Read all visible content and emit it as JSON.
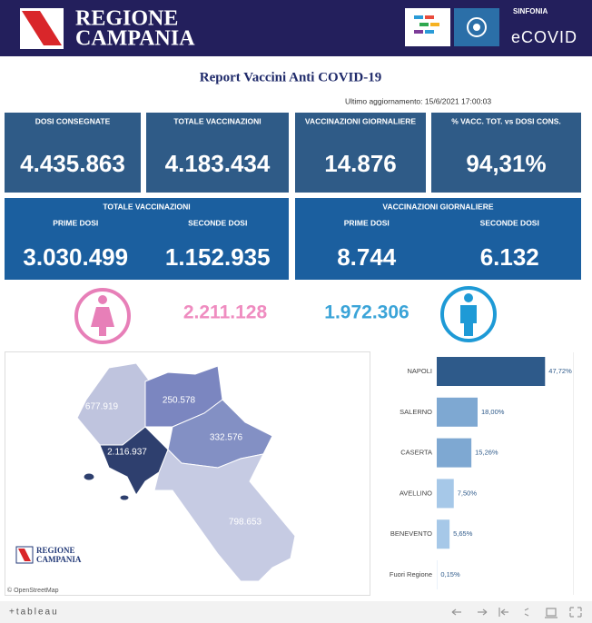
{
  "header": {
    "brand_line1": "REGIONE",
    "brand_line2": "CAMPANIA",
    "product_top": "SINFONIA",
    "product_name": "eCOVID"
  },
  "report": {
    "title": "Report Vaccini Anti COVID-19",
    "updated": "Ultimo aggiornamento: 15/6/2021 17:00:03"
  },
  "kpis": [
    {
      "label": "DOSI CONSEGNATE",
      "value": "4.435.863"
    },
    {
      "label": "TOTALE VACCINAZIONI",
      "value": "4.183.434"
    },
    {
      "label": "VACCINAZIONI GIORNALIERE",
      "value": "14.876"
    },
    {
      "label": "% VACC. TOT. vs DOSI CONS.",
      "value": "94,31%"
    }
  ],
  "dose_panels": [
    {
      "title": "TOTALE VACCINAZIONI",
      "items": [
        {
          "label": "PRIME DOSI",
          "value": "3.030.499"
        },
        {
          "label": "SECONDE DOSI",
          "value": "1.152.935"
        }
      ]
    },
    {
      "title": "VACCINAZIONI GIORNALIERE",
      "items": [
        {
          "label": "PRIME DOSI",
          "value": "8.744"
        },
        {
          "label": "SECONDE DOSI",
          "value": "6.132"
        }
      ]
    }
  ],
  "gender": {
    "female": "2.211.128",
    "male": "1.972.306"
  },
  "map": {
    "regions": [
      "677.919",
      "250.578",
      "332.576",
      "2.116.937",
      "798.653"
    ],
    "logo_line1": "REGIONE",
    "logo_line2": "CAMPANIA",
    "attribution": "© OpenStreetMap"
  },
  "chart_data": {
    "type": "bar",
    "orientation": "horizontal",
    "categories": [
      "NAPOLI",
      "SALERNO",
      "CASERTA",
      "AVELLINO",
      "BENEVENTO",
      "Fuori Regione"
    ],
    "values": [
      47.72,
      18.0,
      15.26,
      7.5,
      5.65,
      0.15
    ],
    "value_labels": [
      "47,72%",
      "18,00%",
      "15,26%",
      "7,50%",
      "5,65%",
      "0,15%"
    ],
    "colors": [
      "#2e5a8a",
      "#7ea8d2",
      "#7ea8d2",
      "#a6c8e8",
      "#a6c8e8",
      "#c4daf0"
    ]
  },
  "footer": {
    "brand": "+tableau"
  }
}
